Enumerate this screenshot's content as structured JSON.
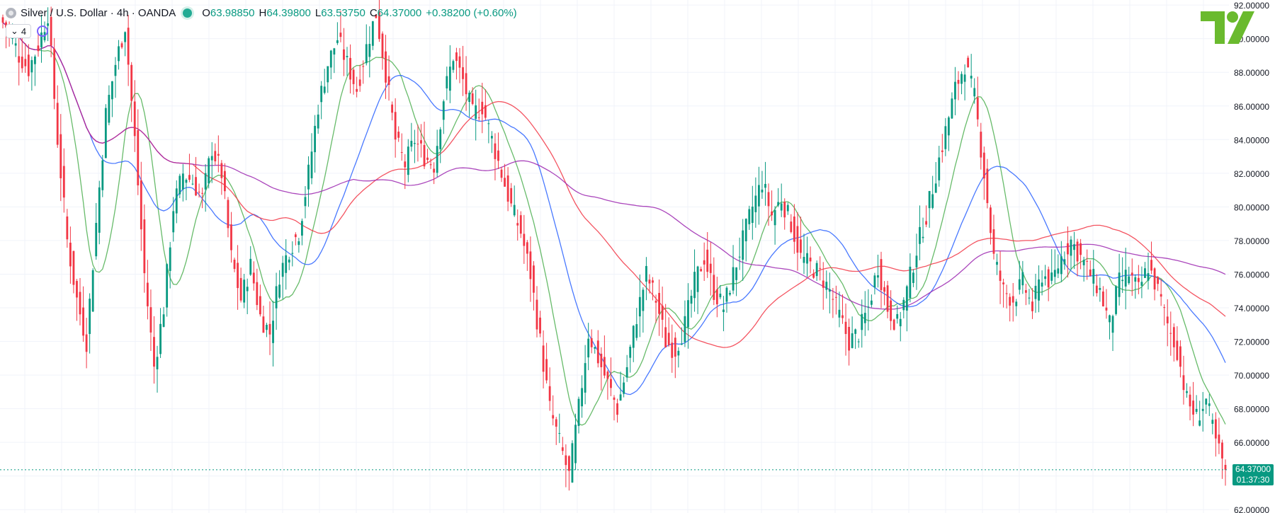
{
  "header": {
    "symbol": "Silver / U.S. Dollar · 4h · OANDA",
    "open_label": "O",
    "open": "63.98850",
    "high_label": "H",
    "high": "64.39800",
    "low_label": "L",
    "low": "63.53750",
    "close_label": "C",
    "close": "64.37000",
    "change": "+0.38200 (+0.60%)",
    "indicator_count": "4"
  },
  "price_tag": {
    "price": "64.37000",
    "countdown": "01:37:30"
  },
  "colors": {
    "up": "#089981",
    "down": "#f23645",
    "ma_fast": "#4caf50",
    "ma_mid": "#2962ff",
    "ma_slow": "#f23645",
    "ma_long": "#9c27b0",
    "logo": "#6aba2e"
  },
  "icons": [
    "symbol-icon",
    "status-dot-icon",
    "chevron-down-icon",
    "refresh-icon",
    "tradingview-logo-icon"
  ],
  "chart_data": {
    "type": "candlestick",
    "y_ticks": [
      "92.00000",
      "90.00000",
      "88.00000",
      "86.00000",
      "84.00000",
      "82.00000",
      "80.00000",
      "78.00000",
      "76.00000",
      "74.00000",
      "72.00000",
      "70.00000",
      "68.00000",
      "66.00000",
      "64.00000",
      "62.00000"
    ],
    "ylim": [
      61.8,
      92.3
    ],
    "current_price": 64.37,
    "grid": true,
    "series_closes": [
      91.2,
      90.5,
      89.0,
      88.2,
      89.6,
      91.5,
      84.0,
      78.0,
      74.5,
      72.0,
      79.0,
      85.5,
      88.5,
      90.8,
      84.0,
      76.0,
      70.5,
      74.0,
      80.0,
      82.0,
      81.5,
      80.5,
      83.5,
      82.0,
      77.0,
      74.5,
      76.5,
      73.5,
      72.5,
      76.0,
      77.5,
      78.5,
      82.0,
      86.0,
      88.5,
      90.0,
      88.5,
      87.0,
      89.5,
      91.5,
      88.0,
      84.0,
      82.5,
      84.0,
      83.0,
      82.5,
      86.5,
      89.0,
      87.5,
      85.5,
      86.0,
      84.0,
      82.0,
      80.0,
      78.5,
      76.0,
      72.0,
      68.0,
      66.0,
      64.0,
      68.0,
      72.5,
      71.0,
      69.5,
      68.0,
      70.5,
      73.5,
      76.0,
      74.5,
      72.0,
      71.5,
      73.0,
      75.5,
      77.0,
      75.0,
      74.0,
      76.0,
      78.0,
      80.0,
      81.5,
      79.5,
      80.5,
      79.0,
      77.0,
      76.5,
      76.0,
      75.0,
      73.5,
      72.0,
      72.5,
      74.0,
      76.5,
      74.0,
      73.0,
      75.0,
      77.5,
      79.5,
      82.0,
      84.5,
      87.0,
      88.5,
      86.5,
      82.0,
      77.0,
      75.0,
      74.5,
      75.5,
      74.0,
      76.0,
      75.5,
      77.0,
      78.0,
      77.0,
      76.0,
      75.0,
      73.0,
      75.5,
      76.0,
      75.0,
      76.5,
      75.0,
      73.0,
      71.5,
      68.5,
      67.5,
      68.5,
      66.0,
      64.37
    ]
  }
}
